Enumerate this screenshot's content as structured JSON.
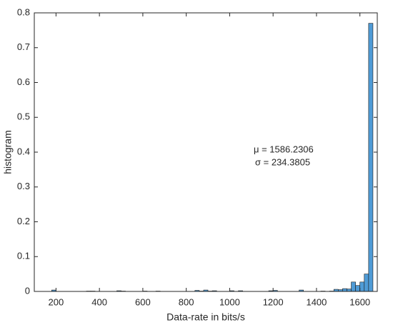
{
  "chart_data": {
    "type": "histogram",
    "xlabel": "Data-rate in bits/s",
    "ylabel": "histogram",
    "annotations": [
      "μ = 1586.2306",
      "σ = 234.3805"
    ],
    "bins": [
      180,
      200,
      220,
      240,
      260,
      280,
      300,
      320,
      340,
      360,
      380,
      400,
      420,
      440,
      460,
      480,
      500,
      520,
      540,
      560,
      580,
      600,
      620,
      640,
      660,
      680,
      700,
      720,
      740,
      760,
      780,
      800,
      820,
      840,
      860,
      880,
      900,
      920,
      940,
      960,
      980,
      1000,
      1020,
      1040,
      1060,
      1080,
      1100,
      1120,
      1140,
      1160,
      1180,
      1200,
      1220,
      1240,
      1260,
      1280,
      1300,
      1320,
      1340,
      1360,
      1380,
      1400,
      1420,
      1440,
      1460,
      1480,
      1500,
      1520,
      1540,
      1560,
      1580,
      1600,
      1620,
      1640,
      1660
    ],
    "values": [
      0.004,
      0,
      0,
      0,
      0,
      0,
      0,
      0,
      0.001,
      0.001,
      0,
      0,
      0,
      0,
      0,
      0.002,
      0.001,
      0,
      0,
      0,
      0,
      0.001,
      0,
      0,
      0.001,
      0,
      0,
      0,
      0,
      0,
      0,
      0,
      0,
      0.003,
      0.001,
      0.004,
      0.001,
      0.002,
      0,
      0,
      0,
      0.002,
      0,
      0.002,
      0,
      0,
      0,
      0,
      0,
      0,
      0.002,
      0.003,
      0,
      0,
      0,
      0,
      0,
      0.004,
      0,
      0,
      0,
      0,
      0.001,
      0,
      0.001,
      0.006,
      0.005,
      0.008,
      0.007,
      0.027,
      0.017,
      0.027,
      0.05,
      0.77
    ],
    "color": "#4f9bd6",
    "xlim": [
      100,
      1680
    ],
    "xticks": [
      200,
      400,
      600,
      800,
      1000,
      1200,
      1400,
      1600
    ],
    "ylim": [
      0,
      0.8
    ],
    "yticks": [
      0,
      0.1,
      0.2,
      0.3,
      0.4,
      0.5,
      0.6,
      0.7,
      0.8
    ]
  }
}
